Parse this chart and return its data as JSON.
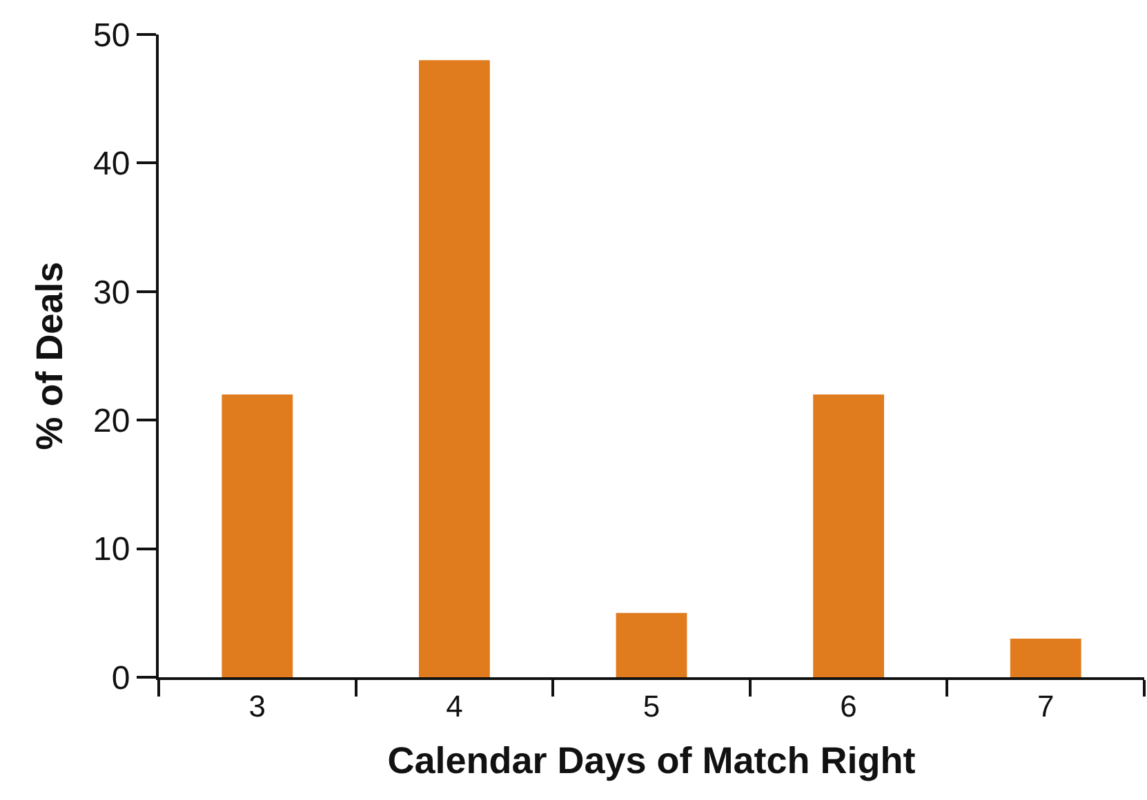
{
  "chart_data": {
    "type": "bar",
    "xlabel": "Calendar Days of Match Right",
    "ylabel": "% of Deals",
    "categories": [
      "3",
      "4",
      "5",
      "6",
      "7"
    ],
    "values": [
      22,
      48,
      5,
      22,
      3
    ],
    "color": "#e07b1e",
    "ylim": [
      0,
      50
    ],
    "yticks": [
      0,
      10,
      20,
      30,
      40,
      50
    ]
  }
}
